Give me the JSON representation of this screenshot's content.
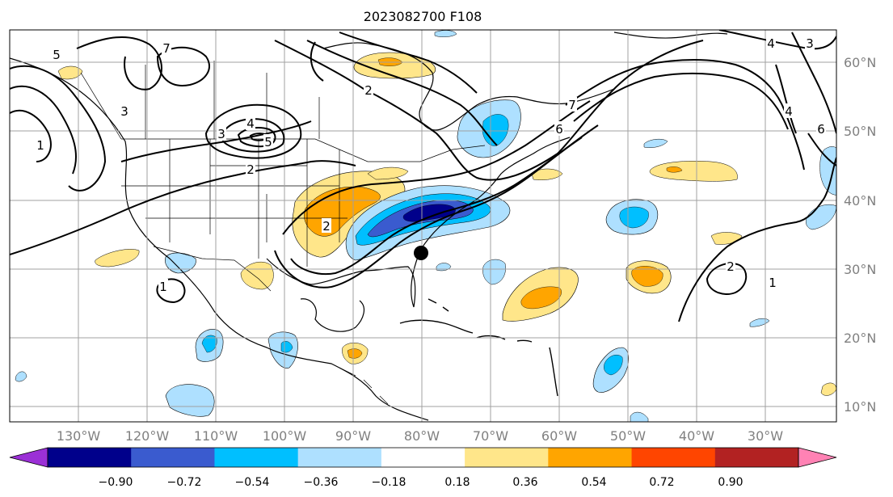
{
  "title": "2023082700 F108",
  "map": {
    "lon_ticks": [
      "130°W",
      "120°W",
      "110°W",
      "100°W",
      "90°W",
      "80°W",
      "70°W",
      "60°W",
      "50°W",
      "40°W",
      "30°W"
    ],
    "lat_ticks": [
      "60°N",
      "50°N",
      "40°N",
      "30°N",
      "20°N",
      "10°N"
    ],
    "contour_labels": [
      "1",
      "2",
      "3",
      "4",
      "5",
      "6",
      "7"
    ],
    "marker": "storm-location-dot"
  },
  "colorbar": {
    "ticks": [
      "−0.90",
      "−0.72",
      "−0.54",
      "−0.36",
      "−0.18",
      "0.18",
      "0.36",
      "0.54",
      "0.72",
      "0.90"
    ],
    "colors": [
      "#9b30d6",
      "#00008b",
      "#3a5bcf",
      "#00bfff",
      "#aee0ff",
      "#ffffff",
      "#ffe68a",
      "#ffa500",
      "#ff4500",
      "#b22222",
      "#ff82b4"
    ]
  }
}
